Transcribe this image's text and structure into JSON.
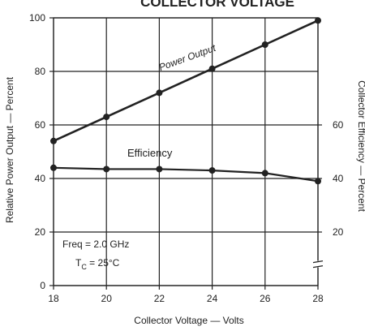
{
  "chart_data": {
    "type": "line",
    "title": "COLLECTOR VOLTAGE",
    "xlabel": "Collector Voltage — Volts",
    "ylabel_left": "Relative Power Output — Percent",
    "ylabel_right": "Collector Efficiency — Percent",
    "x_ticks": [
      18,
      20,
      22,
      24,
      26,
      28
    ],
    "y_ticks_left": [
      0,
      20,
      40,
      60,
      80,
      100
    ],
    "y_ticks_right": [
      20,
      40,
      60
    ],
    "xlim": [
      18,
      28
    ],
    "ylim_left": [
      0,
      100
    ],
    "right_axis_ylim": [
      0,
      100
    ],
    "grid": true,
    "series": [
      {
        "name": "Power Output",
        "axis": "left",
        "x": [
          18,
          20,
          22,
          24,
          26,
          28
        ],
        "values": [
          54,
          63,
          72,
          81,
          90,
          99
        ]
      },
      {
        "name": "Efficiency",
        "axis": "right",
        "x": [
          18,
          20,
          22,
          24,
          26,
          28
        ],
        "values": [
          44,
          43.5,
          43.5,
          43,
          42,
          39
        ]
      }
    ],
    "annotations": {
      "freq": "Freq = 2.0 GHz",
      "tc_main": "T",
      "tc_sub": "C",
      "tc_value": " = 25°C"
    },
    "colors": {
      "line": "#222222",
      "grid": "#222222",
      "text": "#222222",
      "background": "#ffffff"
    }
  }
}
